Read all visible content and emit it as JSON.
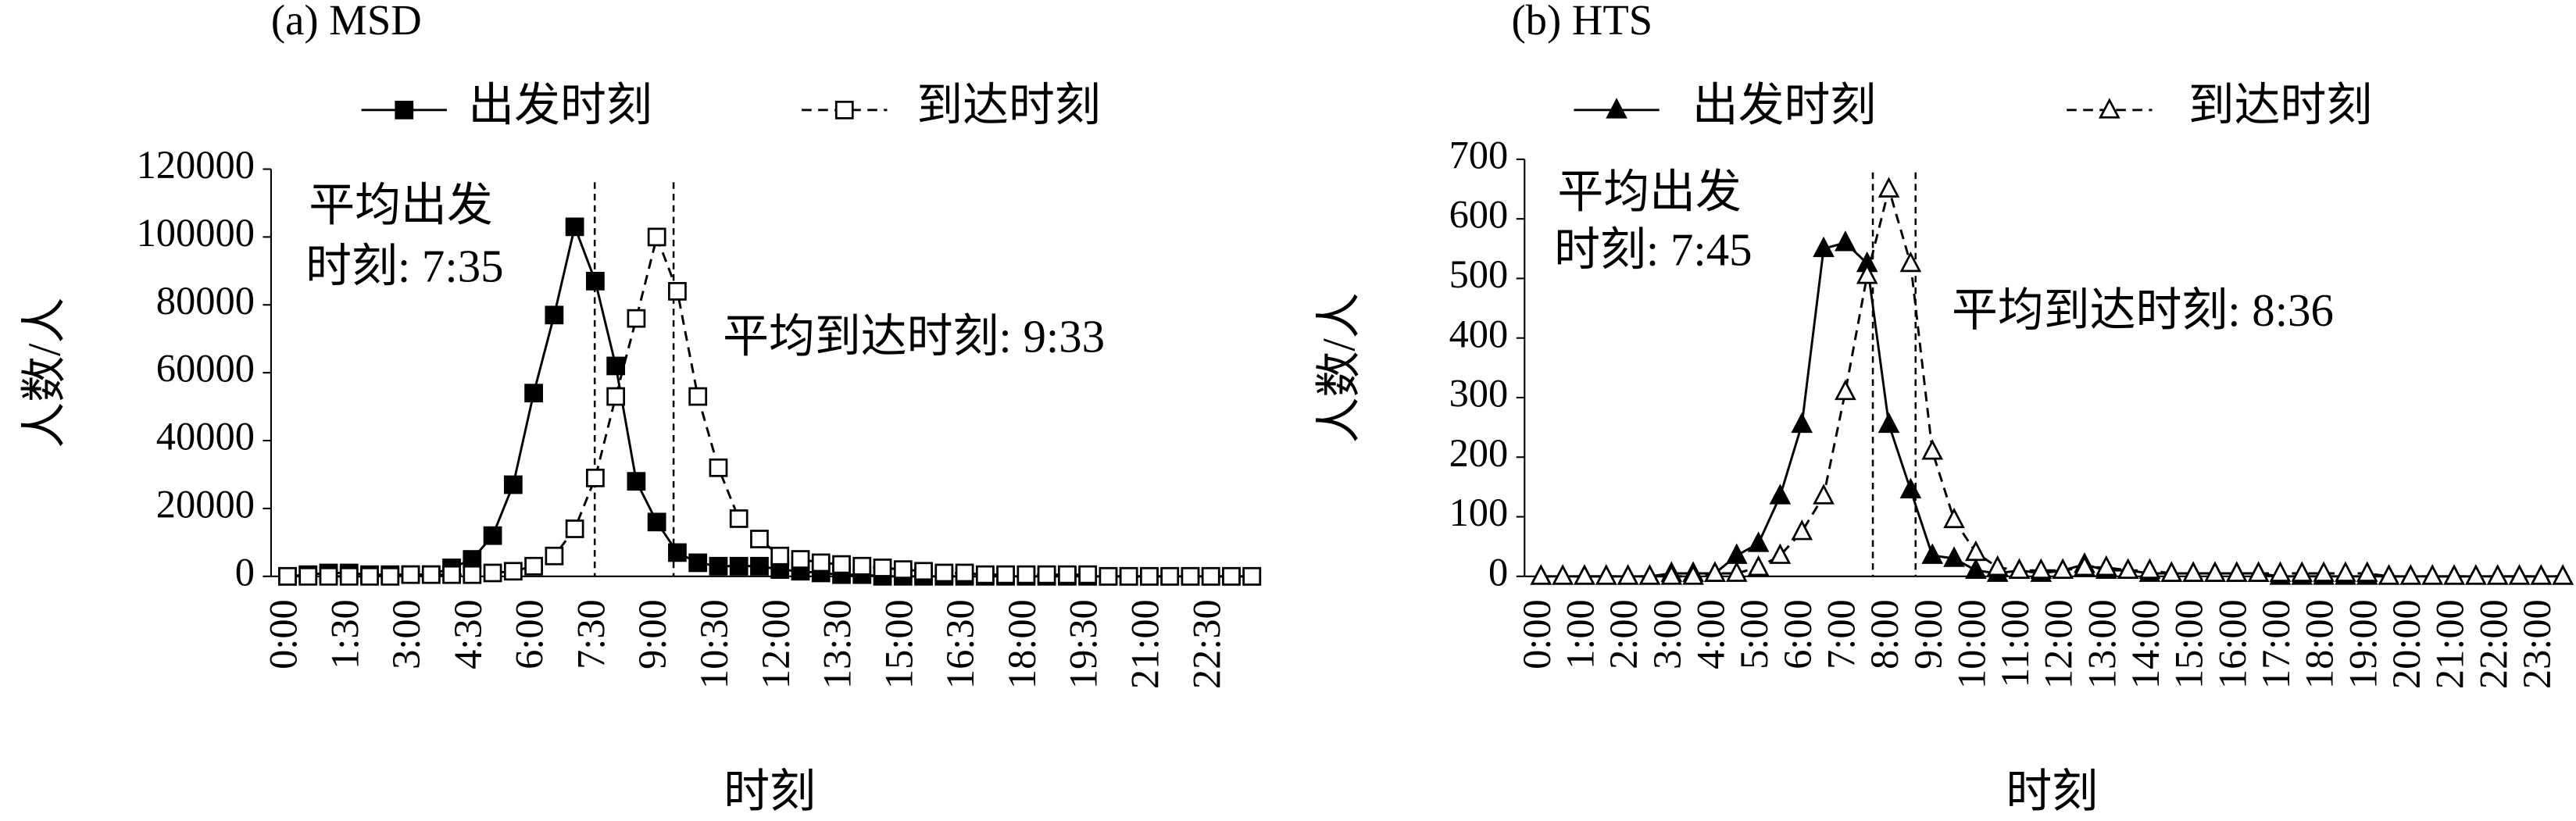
{
  "chart_data": [
    {
      "type": "line",
      "title": "(a) MSD",
      "x_label": "时刻",
      "y_label": "人数/人",
      "categories": [
        "0:00",
        null,
        null,
        "1:30",
        null,
        null,
        "3:00",
        null,
        null,
        "4:30",
        null,
        null,
        "6:00",
        null,
        null,
        "7:30",
        null,
        null,
        "9:00",
        null,
        null,
        "10:30",
        null,
        null,
        "12:00",
        null,
        null,
        "13:30",
        null,
        null,
        "15:00",
        null,
        null,
        "16:30",
        null,
        null,
        "18:00",
        null,
        null,
        "19:30",
        null,
        null,
        "21:00",
        null,
        null,
        "22:30",
        null,
        null
      ],
      "ylim": [
        0,
        120000
      ],
      "yticks": [
        0,
        20000,
        40000,
        60000,
        80000,
        100000,
        120000
      ],
      "annotations": [
        [
          "平均出发",
          "时刻: 7:35"
        ],
        [
          "平均到达时刻: 9:33"
        ]
      ],
      "series": [
        {
          "name": "出发时刻",
          "color": "#000000",
          "marker": "square",
          "filled": true,
          "dashed": false,
          "values": [
            0,
            500,
            1000,
            1000,
            500,
            500,
            500,
            500,
            2500,
            5000,
            12000,
            27000,
            54000,
            77000,
            103000,
            87000,
            62000,
            28000,
            16000,
            7000,
            4000,
            3000,
            3000,
            3000,
            2000,
            1500,
            1000,
            500,
            500,
            0,
            0,
            0,
            0,
            0,
            0,
            0,
            0,
            0,
            0,
            0,
            0,
            0,
            0,
            0,
            0,
            0,
            0,
            0
          ]
        },
        {
          "name": "到达时刻",
          "color": "#000000",
          "marker": "square",
          "filled": false,
          "dashed": true,
          "values": [
            0,
            0,
            0,
            0,
            0,
            0,
            500,
            500,
            500,
            500,
            1000,
            1500,
            3000,
            6000,
            14000,
            29000,
            53000,
            76000,
            100000,
            84000,
            53000,
            32000,
            17000,
            11000,
            6000,
            5000,
            4000,
            3500,
            3000,
            2500,
            2000,
            1500,
            1000,
            1000,
            500,
            500,
            500,
            500,
            500,
            500,
            0,
            0,
            0,
            0,
            0,
            0,
            0,
            0
          ]
        }
      ]
    },
    {
      "type": "line",
      "title": "(b) HTS",
      "x_label": "时刻",
      "y_label": "人数/人",
      "categories": [
        "0:00",
        null,
        "1:00",
        null,
        "2:00",
        null,
        "3:00",
        null,
        "4:00",
        null,
        "5:00",
        null,
        "6:00",
        null,
        "7:00",
        null,
        "8:00",
        null,
        "9:00",
        null,
        "10:00",
        null,
        "11:00",
        null,
        "12:00",
        null,
        "13:00",
        null,
        "14:00",
        null,
        "15:00",
        null,
        "16:00",
        null,
        "17:00",
        null,
        "18:00",
        null,
        "19:00",
        null,
        "20:00",
        null,
        "21:00",
        null,
        "22:00",
        null,
        "23:00",
        null
      ],
      "ylim": [
        0,
        700
      ],
      "yticks": [
        0,
        100,
        200,
        300,
        400,
        500,
        600,
        700
      ],
      "annotations": [
        [
          "平均出发",
          "时刻: 7:45"
        ],
        [
          "平均到达时刻: 8:36"
        ]
      ],
      "series": [
        {
          "name": "出发时刻",
          "color": "#000000",
          "marker": "triangle",
          "filled": true,
          "dashed": false,
          "values": [
            0,
            0,
            0,
            0,
            0,
            0,
            5,
            5,
            5,
            35,
            55,
            135,
            255,
            550,
            560,
            525,
            255,
            145,
            35,
            30,
            10,
            5,
            10,
            5,
            10,
            20,
            10,
            10,
            5,
            5,
            5,
            5,
            5,
            5,
            0,
            0,
            0,
            0,
            0,
            0,
            0,
            0,
            0,
            0,
            0,
            0,
            0,
            0
          ]
        },
        {
          "name": "到达时刻",
          "color": "#000000",
          "marker": "triangle",
          "filled": false,
          "dashed": true,
          "values": [
            0,
            0,
            0,
            0,
            0,
            0,
            0,
            0,
            5,
            5,
            15,
            35,
            75,
            135,
            310,
            505,
            650,
            525,
            210,
            95,
            40,
            15,
            10,
            10,
            10,
            15,
            15,
            10,
            10,
            5,
            5,
            5,
            5,
            5,
            5,
            5,
            5,
            5,
            5,
            0,
            0,
            0,
            0,
            0,
            0,
            0,
            0,
            0
          ]
        }
      ]
    }
  ]
}
